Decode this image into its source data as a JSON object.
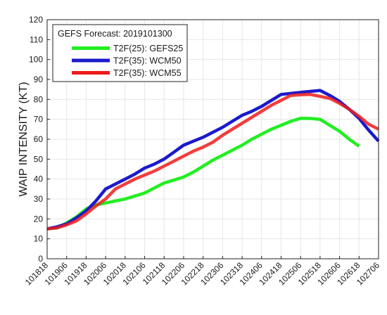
{
  "chart_data": {
    "type": "line",
    "title": "",
    "legend_title": "GEFS Forecast: 2019101300",
    "legend_position": "top-left",
    "xlabel": "",
    "ylabel": "WAIP INTENSITY (KT)",
    "ylim": [
      0,
      120
    ],
    "yticks": [
      0,
      10,
      20,
      30,
      40,
      50,
      60,
      70,
      80,
      90,
      100,
      110,
      120
    ],
    "grid": true,
    "categories": [
      "101818",
      "101900",
      "101906",
      "101912",
      "101918",
      "102000",
      "102006",
      "102012",
      "102018",
      "102100",
      "102106",
      "102112",
      "102118",
      "102200",
      "102206",
      "102212",
      "102218",
      "102300",
      "102306",
      "102312",
      "102318",
      "102400",
      "102406",
      "102412",
      "102418",
      "102500",
      "102506",
      "102512",
      "102518",
      "102600",
      "102606",
      "102612",
      "102618",
      "102700",
      "102706"
    ],
    "tick_labels": [
      "101818",
      "101906",
      "101918",
      "102006",
      "102018",
      "102106",
      "102118",
      "102206",
      "102218",
      "102306",
      "102318",
      "102406",
      "102418",
      "102506",
      "102518",
      "102606",
      "102618",
      "102706"
    ],
    "series": [
      {
        "name": "T2F(25): GEFS25",
        "color": "#22ee22",
        "values": [
          15,
          15.5,
          18,
          21,
          25,
          27,
          28,
          29,
          30,
          31.5,
          33,
          35.5,
          38,
          39.5,
          41,
          43.5,
          46.5,
          49.5,
          52,
          54.5,
          57,
          60,
          62.5,
          65,
          67,
          69,
          70.5,
          70.4,
          70,
          67,
          64,
          60,
          56.5,
          null,
          null
        ]
      },
      {
        "name": "T2F(35): WCM50",
        "color": "#1a1acc",
        "values": [
          15,
          16,
          17.5,
          20.5,
          24,
          29,
          35,
          37.5,
          40,
          42.5,
          45.5,
          47.5,
          50,
          53.5,
          57,
          59,
          61,
          63.5,
          66,
          69,
          72,
          74,
          76.5,
          79.5,
          82.5,
          83,
          83.5,
          84,
          84.5,
          82,
          79,
          75,
          70.5,
          64.5,
          59
        ]
      },
      {
        "name": "T2F(35): WCM55",
        "color": "#ee1c1c",
        "values": [
          15,
          15.5,
          17,
          19,
          22.5,
          26.5,
          30,
          35,
          37.5,
          40,
          42,
          44,
          46.5,
          49,
          51.5,
          54,
          56,
          58.5,
          62,
          65,
          68,
          71,
          74,
          77,
          79.5,
          82,
          82.3,
          82.5,
          81.5,
          80.5,
          78,
          75,
          71.5,
          67.5,
          65
        ]
      }
    ]
  }
}
